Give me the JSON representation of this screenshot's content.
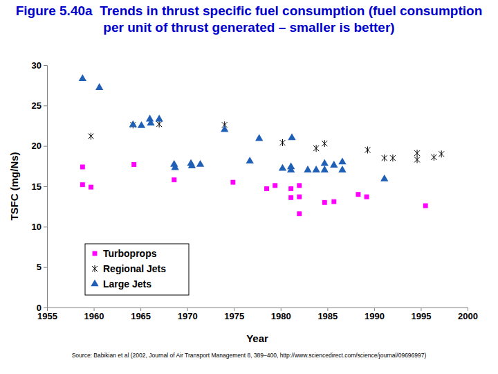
{
  "chart_data": {
    "type": "scatter",
    "title": "Figure 5.40a  Trends in thrust specific fuel consumption (fuel consumption per unit of thrust generated – smaller is better)",
    "x_label": "Year",
    "y_label": "TSFC (mg/Ns)",
    "annotations": [
      "Source: Babikian et al (2002, Journal of Air Transport Management 8, 389–400, http://www.sciencedirect.com/science/journal/09696997)"
    ],
    "xlim": [
      1955,
      2000
    ],
    "xticks": [
      1955,
      1960,
      1965,
      1970,
      1975,
      1980,
      1985,
      1990,
      1995,
      2000
    ],
    "ylim": [
      0,
      30
    ],
    "yticks": [
      0,
      5,
      10,
      15,
      20,
      25,
      30
    ],
    "grid": false,
    "legend": "lower left",
    "series": [
      {
        "name": "Turboprops",
        "color": "#ff00ff",
        "marker": "square",
        "x": [
          1958.8,
          1958.8,
          1959.7,
          1964.3,
          1968.6,
          1974.9,
          1978.5,
          1979.4,
          1981.1,
          1981.1,
          1982.0,
          1982.0,
          1982.0,
          1984.7,
          1985.7,
          1988.3,
          1989.2,
          1995.5
        ],
        "values": [
          17.4,
          15.2,
          14.9,
          17.7,
          15.8,
          15.5,
          14.7,
          15.1,
          14.7,
          13.6,
          15.1,
          13.7,
          11.6,
          13.0,
          13.1,
          14.0,
          13.7,
          12.6
        ]
      },
      {
        "name": "Regional Jets",
        "color": "#000000",
        "marker": "asterisk",
        "x": [
          1959.7,
          1964.2,
          1967.0,
          1974.0,
          1980.2,
          1983.8,
          1984.7,
          1989.3,
          1991.1,
          1992.0,
          1994.6,
          1994.6,
          1996.4,
          1997.2
        ],
        "values": [
          21.2,
          22.6,
          22.7,
          22.6,
          20.4,
          19.7,
          20.3,
          19.5,
          18.5,
          18.5,
          19.1,
          18.3,
          18.6,
          19.0
        ]
      },
      {
        "name": "Large Jets",
        "color": "#1f5fb5",
        "marker": "triangle",
        "x": [
          1958.8,
          1960.6,
          1964.2,
          1965.1,
          1966.0,
          1966.1,
          1967.0,
          1968.6,
          1968.7,
          1970.4,
          1970.5,
          1971.4,
          1974.0,
          1976.7,
          1977.7,
          1980.2,
          1981.1,
          1981.1,
          1981.2,
          1982.9,
          1983.8,
          1984.7,
          1984.7,
          1985.7,
          1986.6,
          1986.6,
          1991.1
        ],
        "values": [
          28.3,
          27.2,
          22.6,
          22.5,
          23.3,
          22.8,
          23.3,
          17.7,
          17.3,
          17.8,
          17.5,
          17.7,
          22.0,
          18.1,
          20.9,
          17.2,
          17.4,
          17.0,
          21.0,
          17.0,
          17.0,
          17.8,
          17.0,
          17.6,
          18.0,
          17.0,
          15.9
        ]
      }
    ]
  }
}
